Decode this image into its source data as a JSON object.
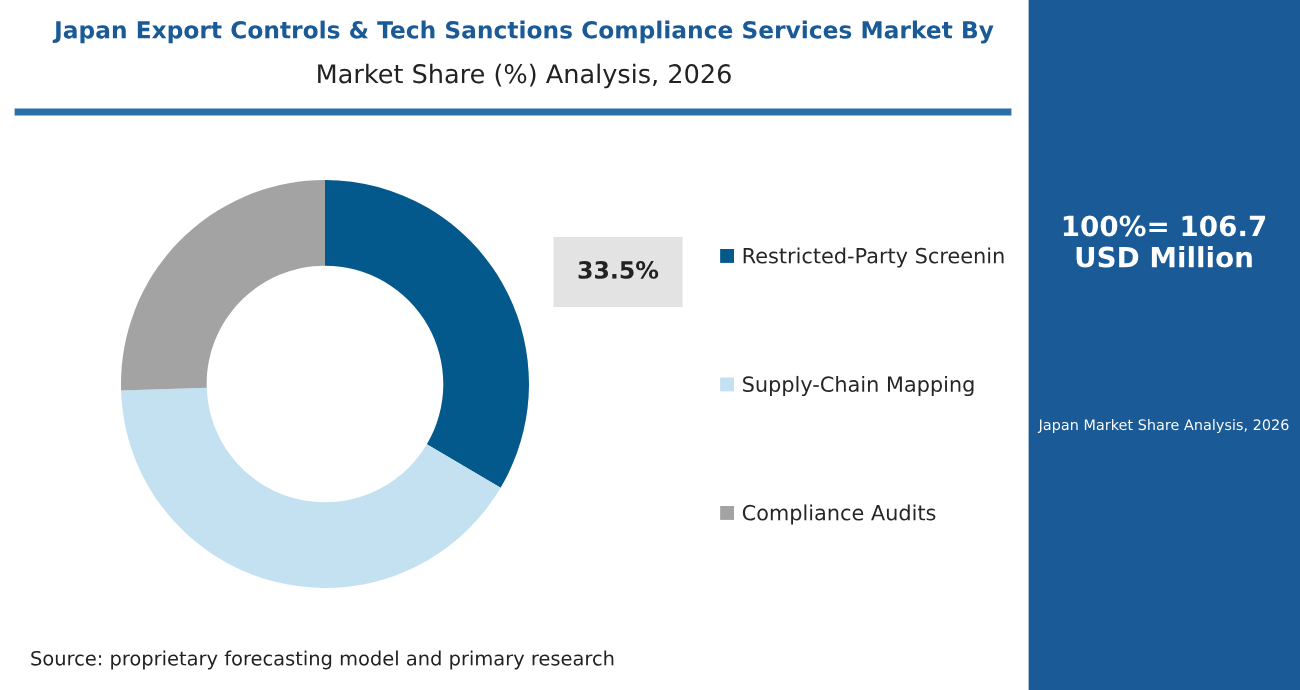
{
  "chart_data": {
    "type": "donut",
    "title": "Japan Export Controls & Tech Sanctions Compliance Services Market By",
    "subtitle": "Market Share (%) Analysis, 2026",
    "categories": [
      "Restricted-Party Screenin",
      "Supply-Chain Mapping",
      "Compliance Audits"
    ],
    "values": [
      33.5,
      41,
      25.5
    ],
    "colors": [
      "#03588c",
      "#c3e1f1",
      "#a3a3a3"
    ],
    "value_labels": [
      "33.5%",
      null,
      null
    ],
    "legend": "right",
    "annotations": [
      "100%= 106.7 USD Million",
      "Japan Market Share Analysis, 2026",
      "Source: proprietary forecasting model and primary research"
    ]
  }
}
